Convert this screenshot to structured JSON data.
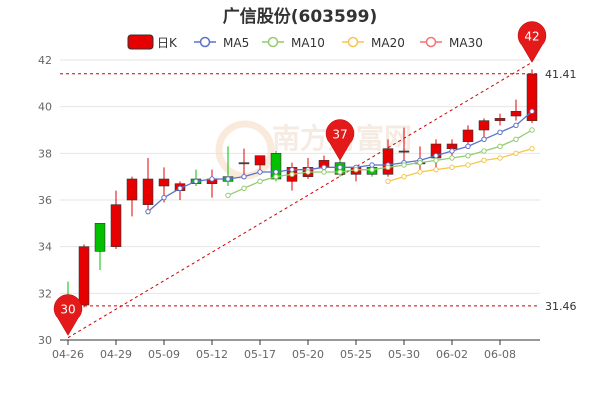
{
  "title": "广信股份(603599)",
  "chart_data": {
    "type": "candlestick",
    "title": "广信股份(603599)",
    "legend": [
      {
        "name": "日K",
        "color": "#e60000",
        "kind": "candle"
      },
      {
        "name": "MA5",
        "color": "#5b72c8",
        "kind": "ma"
      },
      {
        "name": "MA10",
        "color": "#93cc6e",
        "kind": "ma"
      },
      {
        "name": "MA20",
        "color": "#f5c64f",
        "kind": "ma"
      },
      {
        "name": "MA30",
        "color": "#f07474",
        "kind": "ma"
      }
    ],
    "colors": {
      "up": "#e60000",
      "down": "#00c000",
      "grid": "#e6e6e6",
      "axis": "#333333"
    },
    "ylim": [
      30,
      42
    ],
    "yticks": [
      30,
      32,
      34,
      36,
      38,
      40,
      42
    ],
    "xtick_labels": [
      {
        "index": 0,
        "label": "04-26"
      },
      {
        "index": 3,
        "label": "04-29"
      },
      {
        "index": 6,
        "label": "05-09"
      },
      {
        "index": 9,
        "label": "05-12"
      },
      {
        "index": 12,
        "label": "05-17"
      },
      {
        "index": 15,
        "label": "05-20"
      },
      {
        "index": 18,
        "label": "05-25"
      },
      {
        "index": 21,
        "label": "05-30"
      },
      {
        "index": 24,
        "label": "06-02"
      },
      {
        "index": 27,
        "label": "06-08"
      }
    ],
    "candles": [
      {
        "open": 31.9,
        "high": 32.5,
        "low": 31.3,
        "close": 31.5
      },
      {
        "open": 31.5,
        "high": 34.1,
        "low": 31.4,
        "close": 34.0
      },
      {
        "open": 35.0,
        "high": 35.0,
        "low": 33.0,
        "close": 33.8
      },
      {
        "open": 34.0,
        "high": 36.4,
        "low": 33.9,
        "close": 35.8
      },
      {
        "open": 36.0,
        "high": 37.0,
        "low": 35.3,
        "close": 36.9
      },
      {
        "open": 35.8,
        "high": 37.8,
        "low": 35.6,
        "close": 36.9
      },
      {
        "open": 36.6,
        "high": 37.4,
        "low": 35.9,
        "close": 36.9
      },
      {
        "open": 36.4,
        "high": 36.8,
        "low": 36.0,
        "close": 36.7
      },
      {
        "open": 36.9,
        "high": 37.3,
        "low": 36.6,
        "close": 36.7
      },
      {
        "open": 36.7,
        "high": 37.3,
        "low": 36.1,
        "close": 36.9
      },
      {
        "open": 37.0,
        "high": 38.3,
        "low": 36.6,
        "close": 36.8
      },
      {
        "open": 37.6,
        "high": 38.2,
        "low": 36.9,
        "close": 37.6
      },
      {
        "open": 37.5,
        "high": 37.9,
        "low": 37.1,
        "close": 37.9
      },
      {
        "open": 38.0,
        "high": 38.1,
        "low": 36.8,
        "close": 36.9
      },
      {
        "open": 36.8,
        "high": 37.6,
        "low": 36.4,
        "close": 37.4
      },
      {
        "open": 37.0,
        "high": 37.8,
        "low": 36.9,
        "close": 37.4
      },
      {
        "open": 37.4,
        "high": 37.9,
        "low": 37.1,
        "close": 37.7
      },
      {
        "open": 37.6,
        "high": 38.1,
        "low": 37.0,
        "close": 37.1
      },
      {
        "open": 37.1,
        "high": 37.5,
        "low": 36.8,
        "close": 37.4
      },
      {
        "open": 37.4,
        "high": 37.6,
        "low": 37.0,
        "close": 37.1
      },
      {
        "open": 37.1,
        "high": 38.6,
        "low": 37.0,
        "close": 38.2
      },
      {
        "open": 38.1,
        "high": 39.1,
        "low": 37.5,
        "close": 38.1
      },
      {
        "open": 37.6,
        "high": 38.3,
        "low": 37.3,
        "close": 37.6
      },
      {
        "open": 37.8,
        "high": 38.6,
        "low": 37.4,
        "close": 38.4
      },
      {
        "open": 38.2,
        "high": 38.6,
        "low": 37.9,
        "close": 38.4
      },
      {
        "open": 38.5,
        "high": 39.2,
        "low": 38.2,
        "close": 39.0
      },
      {
        "open": 39.0,
        "high": 39.5,
        "low": 38.6,
        "close": 39.4
      },
      {
        "open": 39.4,
        "high": 39.7,
        "low": 39.2,
        "close": 39.5
      },
      {
        "open": 39.6,
        "high": 40.3,
        "low": 39.4,
        "close": 39.8
      },
      {
        "open": 39.4,
        "high": 41.6,
        "low": 39.3,
        "close": 41.4
      }
    ],
    "ma5_start": 5,
    "ma5": [
      35.5,
      36.1,
      36.5,
      36.8,
      36.9,
      36.9,
      37.0,
      37.2,
      37.2,
      37.3,
      37.3,
      37.4,
      37.4,
      37.4,
      37.5,
      37.5,
      37.6,
      37.7,
      37.9,
      38.1,
      38.3,
      38.6,
      38.9,
      39.2,
      39.8
    ],
    "ma10_start": 10,
    "ma10": [
      36.2,
      36.5,
      36.8,
      37.0,
      37.1,
      37.2,
      37.2,
      37.2,
      37.3,
      37.3,
      37.4,
      37.5,
      37.6,
      37.7,
      37.8,
      37.9,
      38.1,
      38.3,
      38.6,
      39.0
    ],
    "ma20_start": 20,
    "ma20": [
      36.8,
      37.0,
      37.2,
      37.3,
      37.4,
      37.5,
      37.7,
      37.8,
      38.0,
      38.2
    ],
    "reference_lines": [
      {
        "value": 41.41,
        "label": "41.41"
      },
      {
        "value": 31.46,
        "label": "31.46"
      }
    ],
    "markers": [
      {
        "index": 0,
        "price": 30.2,
        "label": "30",
        "pointing": "down"
      },
      {
        "index": 17,
        "price": 37.7,
        "label": "37",
        "pointing": "down"
      },
      {
        "index": 29,
        "price": 41.9,
        "label": "42",
        "pointing": "down"
      }
    ],
    "trendline": {
      "from": {
        "index": 0,
        "price": 30.1
      },
      "to": {
        "index": 29,
        "price": 41.9
      }
    },
    "watermark": "南方财富网"
  }
}
